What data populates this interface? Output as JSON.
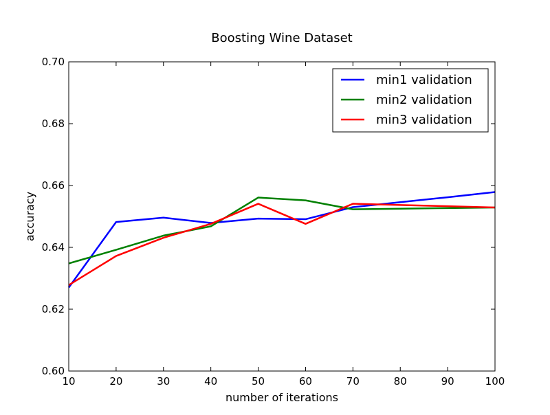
{
  "chart_data": {
    "type": "line",
    "title": "Boosting Wine Dataset",
    "xlabel": "number of iterations",
    "ylabel": "accuracy",
    "xlim": [
      10,
      100
    ],
    "ylim": [
      0.6,
      0.7
    ],
    "x_ticks": [
      10,
      20,
      30,
      40,
      50,
      60,
      70,
      80,
      90,
      100
    ],
    "x_tick_labels": [
      "10",
      "20",
      "30",
      "40",
      "50",
      "60",
      "70",
      "80",
      "90",
      "100"
    ],
    "y_ticks": [
      0.6,
      0.62,
      0.64,
      0.66,
      0.68,
      0.7
    ],
    "y_tick_labels": [
      "0.60",
      "0.62",
      "0.64",
      "0.66",
      "0.68",
      "0.70"
    ],
    "grid": false,
    "legend_position": "top-right",
    "x": [
      10,
      20,
      30,
      40,
      50,
      60,
      70,
      80,
      90,
      100
    ],
    "series": [
      {
        "name": "min1 validation",
        "color": "#0000ff",
        "values": [
          0.627,
          0.6482,
          0.6496,
          0.6479,
          0.6493,
          0.6491,
          0.653,
          0.6546,
          0.6562,
          0.6579
        ]
      },
      {
        "name": "min2 validation",
        "color": "#008000",
        "values": [
          0.6348,
          0.6392,
          0.6438,
          0.6468,
          0.6561,
          0.6552,
          0.6523,
          0.6525,
          0.6527,
          0.6529
        ]
      },
      {
        "name": "min3 validation",
        "color": "#ff0000",
        "values": [
          0.6278,
          0.6372,
          0.6431,
          0.6476,
          0.6541,
          0.6476,
          0.6541,
          0.6537,
          0.6533,
          0.6529
        ]
      }
    ]
  }
}
